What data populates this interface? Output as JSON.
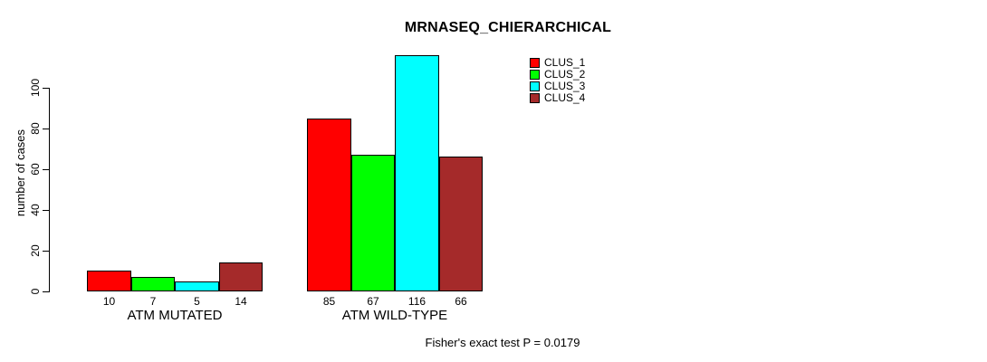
{
  "title": "MRNASEQ_CHIERARCHICAL",
  "ylabel": "number of cases",
  "footer": "Fisher's exact test P = 0.0179",
  "chart_data": {
    "type": "bar",
    "categories": [
      "ATM MUTATED",
      "ATM WILD-TYPE"
    ],
    "series": [
      {
        "name": "CLUS_1",
        "color": "#ff0000",
        "values": [
          10,
          85
        ]
      },
      {
        "name": "CLUS_2",
        "color": "#00ff00",
        "values": [
          7,
          67
        ]
      },
      {
        "name": "CLUS_3",
        "color": "#00ffff",
        "values": [
          5,
          116
        ]
      },
      {
        "name": "CLUS_4",
        "color": "#a52a2a",
        "values": [
          14,
          66
        ]
      }
    ],
    "bar_value_labels": [
      [
        "10",
        "7",
        "5",
        "14"
      ],
      [
        "85",
        "67",
        "116",
        "66"
      ]
    ],
    "yticks": [
      "0",
      "20",
      "40",
      "60",
      "80",
      "100"
    ],
    "ylim": [
      0,
      100
    ],
    "grid": false,
    "legend_position": "top-right",
    "axis_color": "#000000",
    "bar_border_color": "#000000"
  }
}
